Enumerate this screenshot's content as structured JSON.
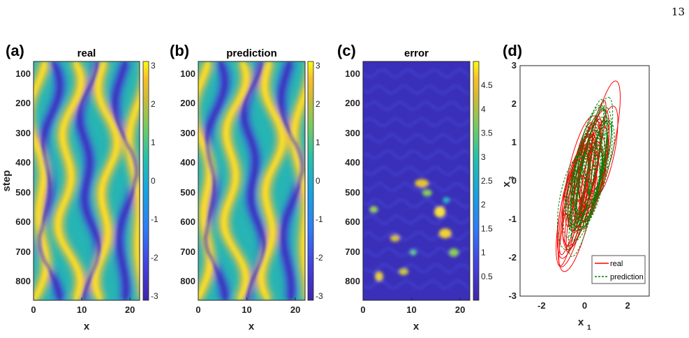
{
  "page_number": "13",
  "panels": [
    {
      "letter": "(a)",
      "title": "real"
    },
    {
      "letter": "(b)",
      "title": "prediction"
    },
    {
      "letter": "(c)",
      "title": "error"
    },
    {
      "letter": "(d)",
      "title": ""
    }
  ],
  "colors": {
    "parula_low": "#3e26a8",
    "parula_mid": "#27c1ab",
    "parula_high": "#f9fb0e",
    "real_line": "#ff0000",
    "prediction_line": "#007f00"
  },
  "chart_data": [
    {
      "type": "heatmap",
      "panel": "(a)",
      "title": "real",
      "xlabel": "x",
      "ylabel": "step",
      "xlim": [
        0,
        22
      ],
      "ylim": [
        800,
        0
      ],
      "x_ticks": [
        "0",
        "10",
        "20"
      ],
      "y_ticks": [
        "100",
        "200",
        "300",
        "400",
        "500",
        "600",
        "700",
        "800"
      ],
      "colorbar": {
        "range": [
          -3,
          3
        ],
        "ticks": [
          "3",
          "2",
          "1",
          "0",
          "-1",
          "-2",
          "-3"
        ]
      },
      "colormap": "parula"
    },
    {
      "type": "heatmap",
      "panel": "(b)",
      "title": "prediction",
      "xlabel": "x",
      "ylabel": "",
      "xlim": [
        0,
        22
      ],
      "ylim": [
        800,
        0
      ],
      "x_ticks": [
        "0",
        "10",
        "20"
      ],
      "y_ticks": [
        "100",
        "200",
        "300",
        "400",
        "500",
        "600",
        "700",
        "800"
      ],
      "colorbar": {
        "range": [
          -3,
          3
        ],
        "ticks": [
          "3",
          "2",
          "1",
          "0",
          "-1",
          "-2",
          "-3"
        ]
      },
      "colormap": "parula"
    },
    {
      "type": "heatmap",
      "panel": "(c)",
      "title": "error",
      "xlabel": "x",
      "ylabel": "",
      "xlim": [
        0,
        22
      ],
      "ylim": [
        800,
        0
      ],
      "x_ticks": [
        "0",
        "10",
        "20"
      ],
      "y_ticks": [
        "100",
        "200",
        "300",
        "400",
        "500",
        "600",
        "700",
        "800"
      ],
      "colorbar": {
        "range": [
          0,
          5
        ],
        "ticks": [
          "4.5",
          "4",
          "3.5",
          "3",
          "2.5",
          "2",
          "1.5",
          "1",
          "0.5"
        ]
      },
      "colormap": "parula"
    },
    {
      "type": "line",
      "panel": "(d)",
      "xlabel": "x",
      "xlabel_sub": "1",
      "ylabel": "x",
      "ylabel_sub": "3",
      "xlim": [
        -3,
        3
      ],
      "ylim": [
        -3,
        3
      ],
      "x_ticks": [
        "-2",
        "0",
        "2"
      ],
      "y_ticks": [
        "3",
        "2",
        "1",
        "0",
        "-1",
        "-2",
        "-3"
      ],
      "legend_position": "bottom-right",
      "series": [
        {
          "name": "real",
          "style": "solid",
          "color": "#ff0000"
        },
        {
          "name": "prediction",
          "style": "dashed",
          "color": "#007f00"
        }
      ]
    }
  ]
}
